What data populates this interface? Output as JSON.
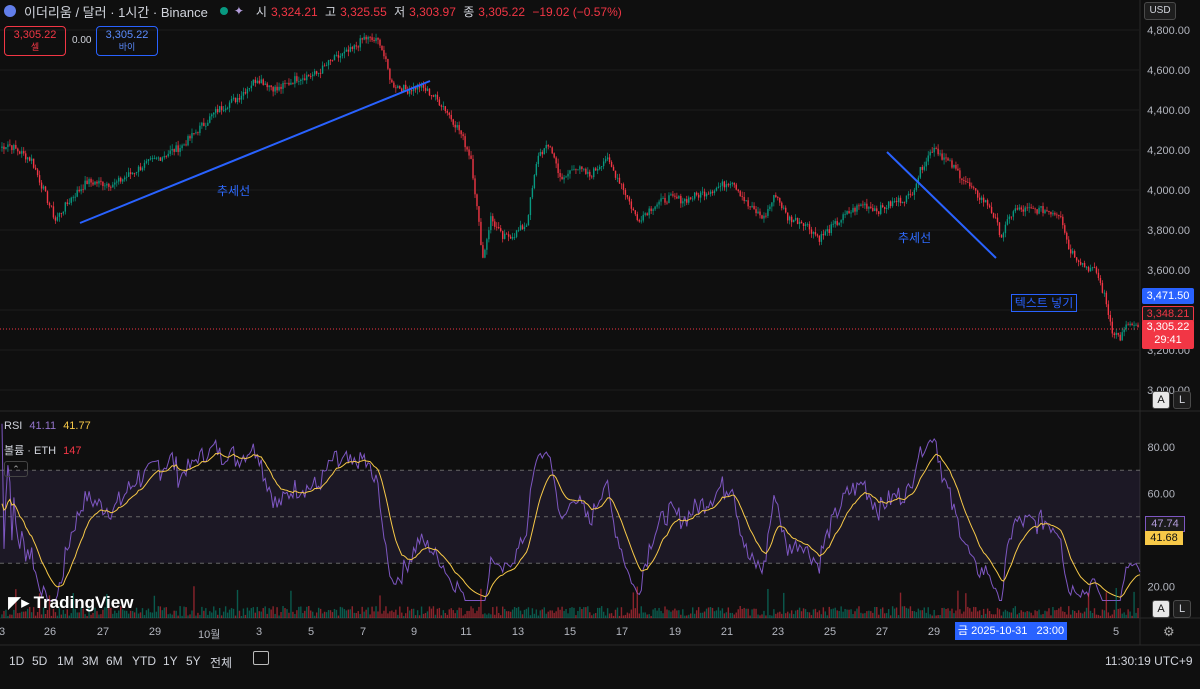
{
  "header": {
    "symbol_title": "이더리움 / 달러 · 1시간 · Binance",
    "ohlc": {
      "open_label": "시",
      "open": "3,324.21",
      "high_label": "고",
      "high": "3,325.55",
      "low_label": "저",
      "low": "3,303.97",
      "close_label": "종",
      "close": "3,305.22",
      "change": "−19.02 (−0.57%)"
    },
    "sell_price": "3,305.22",
    "sell_label": "셀",
    "spread": "0.00",
    "buy_price": "3,305.22",
    "buy_label": "바이",
    "currency": "USD"
  },
  "colors": {
    "up": "#089981",
    "down": "#f23645",
    "rsi": "#7e57c2",
    "rsi_ma": "#f7c948",
    "trendline": "#2962ff",
    "accent": "#2962ff"
  },
  "chart_data": [
    {
      "type": "candlestick",
      "title": "ETHUSD 1h",
      "price_axis_ticks": [
        "4,800.00",
        "4,600.00",
        "4,400.00",
        "4,200.00",
        "4,000.00",
        "3,800.00",
        "3,600.00",
        "3,400.00",
        "3,200.00",
        "3,000.00"
      ],
      "ylim": [
        3000,
        4820
      ],
      "series_close_anchors": [
        [
          0,
          4210
        ],
        [
          4,
          4230
        ],
        [
          10,
          4190
        ],
        [
          16,
          4150
        ],
        [
          22,
          4000
        ],
        [
          28,
          3850
        ],
        [
          36,
          3960
        ],
        [
          44,
          4040
        ],
        [
          58,
          4030
        ],
        [
          72,
          4120
        ],
        [
          84,
          4180
        ],
        [
          92,
          4220
        ],
        [
          100,
          4300
        ],
        [
          110,
          4400
        ],
        [
          120,
          4460
        ],
        [
          130,
          4560
        ],
        [
          140,
          4500
        ],
        [
          150,
          4560
        ],
        [
          160,
          4580
        ],
        [
          168,
          4650
        ],
        [
          178,
          4700
        ],
        [
          184,
          4760
        ],
        [
          192,
          4740
        ],
        [
          198,
          4530
        ],
        [
          206,
          4500
        ],
        [
          212,
          4520
        ],
        [
          218,
          4480
        ],
        [
          224,
          4420
        ],
        [
          232,
          4300
        ],
        [
          238,
          4160
        ],
        [
          244,
          3660
        ],
        [
          248,
          3860
        ],
        [
          254,
          3760
        ],
        [
          260,
          3780
        ],
        [
          266,
          3830
        ],
        [
          272,
          4180
        ],
        [
          278,
          4220
        ],
        [
          284,
          4040
        ],
        [
          290,
          4120
        ],
        [
          298,
          4070
        ],
        [
          306,
          4160
        ],
        [
          314,
          4030
        ],
        [
          322,
          3850
        ],
        [
          330,
          3920
        ],
        [
          338,
          3960
        ],
        [
          346,
          3950
        ],
        [
          354,
          3980
        ],
        [
          362,
          4010
        ],
        [
          370,
          4050
        ],
        [
          378,
          3920
        ],
        [
          386,
          3860
        ],
        [
          392,
          3980
        ],
        [
          398,
          3860
        ],
        [
          406,
          3840
        ],
        [
          414,
          3760
        ],
        [
          420,
          3810
        ],
        [
          428,
          3880
        ],
        [
          436,
          3930
        ],
        [
          444,
          3900
        ],
        [
          452,
          3940
        ],
        [
          460,
          3970
        ],
        [
          466,
          4120
        ],
        [
          472,
          4220
        ],
        [
          476,
          4170
        ],
        [
          484,
          4090
        ],
        [
          492,
          3990
        ],
        [
          500,
          3920
        ],
        [
          506,
          3770
        ],
        [
          512,
          3900
        ],
        [
          520,
          3900
        ],
        [
          528,
          3900
        ],
        [
          536,
          3880
        ],
        [
          540,
          3710
        ],
        [
          548,
          3620
        ],
        [
          554,
          3590
        ],
        [
          558,
          3470
        ],
        [
          562,
          3300
        ],
        [
          566,
          3260
        ],
        [
          570,
          3330
        ],
        [
          576,
          3300
        ]
      ],
      "last_price": "3,305.22",
      "countdown": "29:41",
      "price_line_a": "3,471.50",
      "price_line_b": "3,348.21",
      "trendline_label_1": "추세선",
      "trendline_label_2": "추세선",
      "text_box": "텍스트 넣기"
    },
    {
      "type": "line",
      "title": "RSI",
      "legend": {
        "name": "RSI",
        "value1": "41.11",
        "value2": "41.77"
      },
      "axis_ticks": [
        "80.00",
        "60.00",
        "20.00"
      ],
      "ylim": [
        10,
        90
      ],
      "bands": [
        30,
        50,
        70
      ],
      "last_values": [
        "47.74",
        "41.68"
      ]
    },
    {
      "type": "bar",
      "title": "볼륨 · ETH",
      "legend": {
        "name": "볼륨 · ETH",
        "value": "147"
      }
    }
  ],
  "time_axis": {
    "labels": [
      "3",
      "26",
      "27",
      "29",
      "10월",
      "3",
      "5",
      "7",
      "9",
      "11",
      "13",
      "15",
      "17",
      "19",
      "21",
      "23",
      "25",
      "27",
      "29",
      "금 2025-10-31   23:00",
      "5"
    ]
  },
  "bottom_bar": {
    "ranges": [
      "1D",
      "5D",
      "1M",
      "3M",
      "6M",
      "YTD",
      "1Y",
      "5Y",
      "전체"
    ],
    "clock": "11:30:19 UTC+9"
  },
  "brand": "TradingView",
  "buttons": {
    "auto": "A",
    "log": "L"
  }
}
